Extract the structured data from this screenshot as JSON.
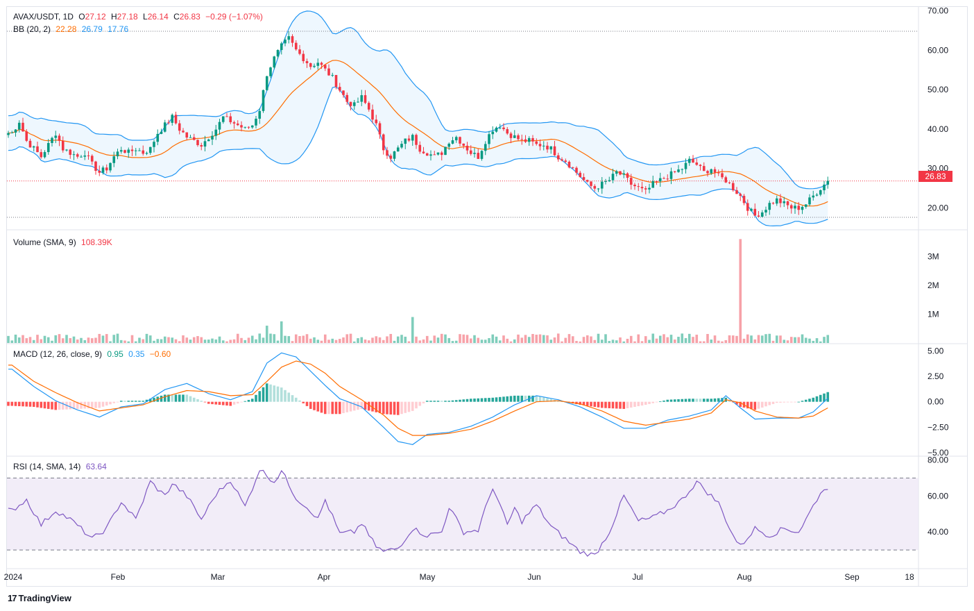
{
  "header": {
    "symbol": "AVAX/USDT, 1D",
    "open_label": "O",
    "open": "27.12",
    "high_label": "H",
    "high": "27.18",
    "low_label": "L",
    "low": "26.14",
    "close_label": "C",
    "close": "26.83",
    "change": "−0.29 (−1.07%)"
  },
  "bb_legend": {
    "label": "BB (20, 2)",
    "basis": "22.28",
    "upper": "26.79",
    "lower": "17.76"
  },
  "volume_legend": {
    "label": "Volume (SMA, 9)",
    "value": "108.39K"
  },
  "macd_legend": {
    "label": "MACD (12, 26, close, 9)",
    "histogram": "0.95",
    "macd": "0.35",
    "signal": "−0.60"
  },
  "rsi_legend": {
    "label": "RSI (14, SMA, 14)",
    "value": "63.64"
  },
  "last_price_tag": "26.83",
  "brand": {
    "logo": "17",
    "name": "TradingView"
  },
  "colors": {
    "up": "#089981",
    "down": "#f23645",
    "bb_basis": "#ff6d00",
    "bb_band": "#2196f3",
    "bb_fill": "#e3f2fd",
    "macd": "#2196f3",
    "signal": "#ff6d00",
    "rsi": "#7e57c2",
    "rsi_fill": "#ede7f6"
  },
  "chart_data": {
    "type": "candlestick",
    "time_axis": {
      "ticks": [
        "2024",
        "Feb",
        "Mar",
        "Apr",
        "May",
        "Jun",
        "Jul",
        "Aug",
        "Sep",
        "18"
      ]
    },
    "price_pane": {
      "ylim": [
        16,
        71
      ],
      "ticks": [
        "70.00",
        "60.00",
        "50.00",
        "40.00",
        "30.00",
        "20.00"
      ],
      "last_price": 26.83,
      "close_path": [
        [
          1,
          39
        ],
        [
          3,
          42
        ],
        [
          5,
          37
        ],
        [
          7,
          35
        ],
        [
          9,
          33
        ],
        [
          11,
          36
        ],
        [
          13,
          39
        ],
        [
          15,
          35
        ],
        [
          17,
          34
        ],
        [
          19,
          33
        ],
        [
          21,
          34
        ],
        [
          23,
          31
        ],
        [
          25,
          29
        ],
        [
          27,
          30
        ],
        [
          29,
          33
        ],
        [
          31,
          35
        ],
        [
          33,
          34
        ],
        [
          35,
          35
        ],
        [
          37,
          34
        ],
        [
          39,
          35
        ],
        [
          41,
          39
        ],
        [
          43,
          41
        ],
        [
          45,
          43
        ],
        [
          47,
          40
        ],
        [
          49,
          38
        ],
        [
          51,
          37
        ],
        [
          53,
          36
        ],
        [
          55,
          38
        ],
        [
          57,
          40
        ],
        [
          59,
          43
        ],
        [
          61,
          42
        ],
        [
          63,
          41
        ],
        [
          65,
          40
        ],
        [
          67,
          41
        ],
        [
          69,
          45
        ],
        [
          71,
          54
        ],
        [
          73,
          58
        ],
        [
          75,
          61
        ],
        [
          77,
          63
        ],
        [
          79,
          60
        ],
        [
          81,
          58
        ],
        [
          83,
          56
        ],
        [
          85,
          57
        ],
        [
          87,
          55
        ],
        [
          89,
          53
        ],
        [
          91,
          50
        ],
        [
          93,
          47
        ],
        [
          95,
          46
        ],
        [
          97,
          48
        ],
        [
          99,
          45
        ],
        [
          101,
          41
        ],
        [
          103,
          35
        ],
        [
          105,
          33
        ],
        [
          107,
          35
        ],
        [
          109,
          37
        ],
        [
          111,
          38
        ],
        [
          113,
          35
        ],
        [
          115,
          34
        ],
        [
          117,
          33
        ],
        [
          119,
          34
        ],
        [
          121,
          37
        ],
        [
          123,
          38
        ],
        [
          125,
          36
        ],
        [
          127,
          34
        ],
        [
          129,
          33
        ],
        [
          131,
          37
        ],
        [
          133,
          40
        ],
        [
          135,
          41
        ],
        [
          137,
          39
        ],
        [
          139,
          38
        ],
        [
          141,
          37
        ],
        [
          143,
          37
        ],
        [
          145,
          36
        ],
        [
          147,
          36
        ],
        [
          149,
          35
        ],
        [
          151,
          33
        ],
        [
          153,
          32
        ],
        [
          155,
          30
        ],
        [
          157,
          28
        ],
        [
          159,
          26
        ],
        [
          161,
          25
        ],
        [
          163,
          26
        ],
        [
          165,
          27
        ],
        [
          167,
          29
        ],
        [
          169,
          28
        ],
        [
          171,
          26
        ],
        [
          173,
          25
        ],
        [
          175,
          24
        ],
        [
          177,
          26
        ],
        [
          179,
          27
        ],
        [
          181,
          28
        ],
        [
          183,
          29
        ],
        [
          185,
          30
        ],
        [
          187,
          32
        ],
        [
          189,
          31
        ],
        [
          191,
          29
        ],
        [
          193,
          30
        ],
        [
          195,
          28
        ],
        [
          197,
          27
        ],
        [
          199,
          25
        ],
        [
          201,
          23
        ],
        [
          203,
          20
        ],
        [
          205,
          18
        ],
        [
          207,
          19
        ],
        [
          209,
          21
        ],
        [
          211,
          22
        ],
        [
          213,
          21
        ],
        [
          215,
          20
        ],
        [
          217,
          20
        ],
        [
          219,
          21
        ],
        [
          221,
          23
        ],
        [
          223,
          25
        ],
        [
          225,
          26.83
        ]
      ]
    },
    "volume_pane": {
      "ticks": [
        "3M",
        "2M",
        "1M"
      ],
      "ylim": [
        0,
        3.8
      ],
      "spikes_millions": [
        {
          "day": 111,
          "value": 0.9
        },
        {
          "day": 75,
          "value": 0.75
        },
        {
          "day": 71,
          "value": 0.6
        },
        {
          "day": 201,
          "value": 3.6
        }
      ]
    },
    "macd_pane": {
      "ylim": [
        -5,
        5.5
      ],
      "ticks": [
        "5.00",
        "2.50",
        "0.00",
        "−2.50",
        "−5.00"
      ],
      "macd_path": [
        [
          1,
          3.2
        ],
        [
          7,
          1.5
        ],
        [
          13,
          0.1
        ],
        [
          19,
          -0.8
        ],
        [
          25,
          -1.5
        ],
        [
          31,
          -0.5
        ],
        [
          37,
          -0.2
        ],
        [
          43,
          1.2
        ],
        [
          49,
          1.8
        ],
        [
          55,
          0.8
        ],
        [
          61,
          0.2
        ],
        [
          67,
          1.0
        ],
        [
          71,
          3.8
        ],
        [
          75,
          4.8
        ],
        [
          79,
          4.4
        ],
        [
          83,
          3.0
        ],
        [
          87,
          1.6
        ],
        [
          91,
          0.3
        ],
        [
          97,
          -0.5
        ],
        [
          103,
          -2.5
        ],
        [
          107,
          -3.9
        ],
        [
          111,
          -4.2
        ],
        [
          115,
          -3.2
        ],
        [
          121,
          -3.0
        ],
        [
          127,
          -2.4
        ],
        [
          133,
          -1.5
        ],
        [
          139,
          -0.3
        ],
        [
          145,
          0.6
        ],
        [
          151,
          0.2
        ],
        [
          157,
          -0.5
        ],
        [
          163,
          -1.5
        ],
        [
          169,
          -2.6
        ],
        [
          175,
          -2.6
        ],
        [
          181,
          -1.8
        ],
        [
          187,
          -1.4
        ],
        [
          193,
          -0.8
        ],
        [
          197,
          0.6
        ],
        [
          201,
          -0.6
        ],
        [
          205,
          -1.7
        ],
        [
          211,
          -1.6
        ],
        [
          217,
          -1.6
        ],
        [
          221,
          -1.0
        ],
        [
          225,
          0.35
        ]
      ],
      "signal_path": [
        [
          1,
          3.6
        ],
        [
          7,
          2.0
        ],
        [
          13,
          0.9
        ],
        [
          19,
          -0.1
        ],
        [
          25,
          -0.9
        ],
        [
          31,
          -0.6
        ],
        [
          37,
          -0.3
        ],
        [
          43,
          0.5
        ],
        [
          49,
          1.1
        ],
        [
          55,
          1.0
        ],
        [
          61,
          0.6
        ],
        [
          67,
          0.7
        ],
        [
          71,
          2.0
        ],
        [
          75,
          3.4
        ],
        [
          79,
          4.0
        ],
        [
          83,
          3.7
        ],
        [
          87,
          2.8
        ],
        [
          91,
          1.5
        ],
        [
          97,
          0.2
        ],
        [
          103,
          -1.3
        ],
        [
          107,
          -2.6
        ],
        [
          111,
          -3.3
        ],
        [
          115,
          -3.3
        ],
        [
          121,
          -3.1
        ],
        [
          127,
          -2.7
        ],
        [
          133,
          -1.9
        ],
        [
          139,
          -0.9
        ],
        [
          145,
          0.0
        ],
        [
          151,
          0.1
        ],
        [
          157,
          -0.2
        ],
        [
          163,
          -0.9
        ],
        [
          169,
          -1.9
        ],
        [
          175,
          -2.3
        ],
        [
          181,
          -2.0
        ],
        [
          187,
          -1.7
        ],
        [
          193,
          -1.1
        ],
        [
          197,
          0.2
        ],
        [
          201,
          -0.1
        ],
        [
          205,
          -0.9
        ],
        [
          211,
          -1.5
        ],
        [
          217,
          -1.6
        ],
        [
          221,
          -1.4
        ],
        [
          225,
          -0.6
        ]
      ],
      "last_values": {
        "histogram": 0.95,
        "macd": 0.35,
        "signal": -0.6
      }
    },
    "rsi_pane": {
      "ylim": [
        20,
        81
      ],
      "ticks": [
        "80.00",
        "60.00",
        "40.00"
      ],
      "band": [
        30,
        70
      ],
      "rsi_path": [
        [
          1,
          52
        ],
        [
          5,
          58
        ],
        [
          9,
          44
        ],
        [
          13,
          52
        ],
        [
          17,
          47
        ],
        [
          21,
          40
        ],
        [
          23,
          36
        ],
        [
          27,
          42
        ],
        [
          31,
          57
        ],
        [
          35,
          47
        ],
        [
          39,
          68
        ],
        [
          43,
          60
        ],
        [
          45,
          67
        ],
        [
          49,
          60
        ],
        [
          53,
          47
        ],
        [
          57,
          61
        ],
        [
          61,
          69
        ],
        [
          65,
          54
        ],
        [
          69,
          75
        ],
        [
          73,
          68
        ],
        [
          75,
          74
        ],
        [
          79,
          59
        ],
        [
          83,
          52
        ],
        [
          85,
          47
        ],
        [
          87,
          58
        ],
        [
          91,
          39
        ],
        [
          95,
          40
        ],
        [
          97,
          45
        ],
        [
          99,
          38
        ],
        [
          101,
          32
        ],
        [
          103,
          29
        ],
        [
          107,
          31
        ],
        [
          111,
          42
        ],
        [
          115,
          38
        ],
        [
          119,
          40
        ],
        [
          121,
          54
        ],
        [
          125,
          40
        ],
        [
          129,
          41
        ],
        [
          133,
          65
        ],
        [
          137,
          44
        ],
        [
          139,
          53
        ],
        [
          141,
          46
        ],
        [
          145,
          55
        ],
        [
          149,
          43
        ],
        [
          153,
          36
        ],
        [
          157,
          29
        ],
        [
          161,
          27
        ],
        [
          165,
          40
        ],
        [
          169,
          60
        ],
        [
          173,
          46
        ],
        [
          177,
          48
        ],
        [
          181,
          52
        ],
        [
          185,
          58
        ],
        [
          189,
          68
        ],
        [
          191,
          64
        ],
        [
          195,
          56
        ],
        [
          199,
          38
        ],
        [
          201,
          32
        ],
        [
          205,
          42
        ],
        [
          209,
          38
        ],
        [
          213,
          42
        ],
        [
          217,
          40
        ],
        [
          219,
          47
        ],
        [
          223,
          62
        ],
        [
          225,
          63.64
        ]
      ]
    }
  }
}
